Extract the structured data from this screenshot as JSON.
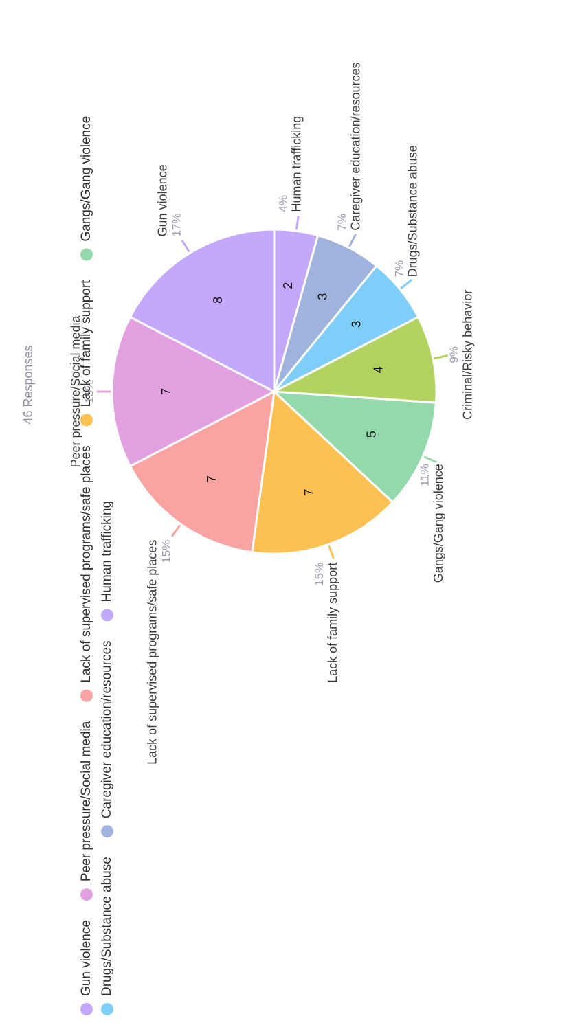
{
  "responses_label": "46 Responses",
  "chart_data": {
    "type": "pie",
    "total": 46,
    "slices": [
      {
        "label": "Human trafficking",
        "value": 2,
        "percent": "4%",
        "color": "#c4a8fc"
      },
      {
        "label": "Caregiver education/resources",
        "value": 3,
        "percent": "7%",
        "color": "#9fb3dd"
      },
      {
        "label": "Drugs/Substance abuse",
        "value": 3,
        "percent": "7%",
        "color": "#7fcdf9"
      },
      {
        "label": "Criminal/Risky behavior",
        "value": 4,
        "percent": "9%",
        "color": "#b3d360"
      },
      {
        "label": "Gangs/Gang violence",
        "value": 5,
        "percent": "11%",
        "color": "#94d9ab"
      },
      {
        "label": "Lack of family support",
        "value": 7,
        "percent": "15%",
        "color": "#fdc153"
      },
      {
        "label": "Lack of supervised programs/safe places",
        "value": 7,
        "percent": "15%",
        "color": "#f9a4a2"
      },
      {
        "label": "Peer pressure/Social media",
        "value": 7,
        "percent": "15%",
        "color": "#e3a0e1"
      },
      {
        "label": "Gun violence",
        "value": 8,
        "percent": "17%",
        "color": "#c4a8fc"
      }
    ],
    "legend": [
      {
        "label": "Gun violence",
        "color": "#c4a8fc"
      },
      {
        "label": "Peer pressure/Social media",
        "color": "#e3a0e1"
      },
      {
        "label": "Lack of supervised programs/safe places",
        "color": "#f9a4a2"
      },
      {
        "label": "Lack of family support",
        "color": "#fdc153"
      },
      {
        "label": "Gangs/Gang violence",
        "color": "#94d9ab"
      },
      {
        "label": "Drugs/Substance abuse",
        "color": "#7fcdf9"
      },
      {
        "label": "Caregiver education/resources",
        "color": "#9fb3dd"
      },
      {
        "label": "Human trafficking",
        "color": "#c4a8fc"
      }
    ],
    "legend_placement": "bottom",
    "orientation": "rotated 90° clockwise"
  }
}
